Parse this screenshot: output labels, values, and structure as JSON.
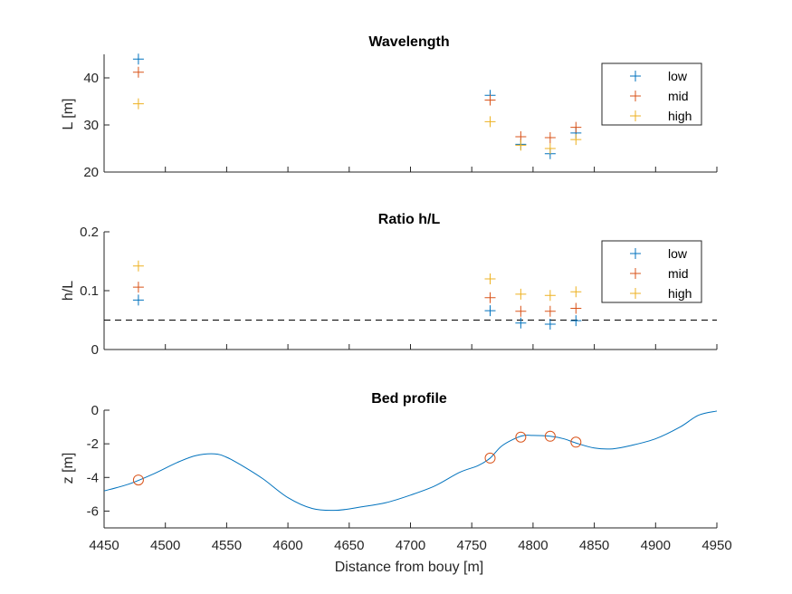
{
  "chart_data": [
    {
      "type": "scatter",
      "title": "Wavelength",
      "ylabel": "L [m]",
      "xlim": [
        4450,
        4950
      ],
      "ylim": [
        20,
        45
      ],
      "yticks": [
        20,
        30,
        40
      ],
      "legend": "top-right",
      "x": [
        4478,
        4765,
        4790,
        4814,
        4835
      ],
      "series": [
        {
          "name": "low",
          "color": "#0072BD",
          "values": [
            44.0,
            36.3,
            25.9,
            23.9,
            28.3
          ]
        },
        {
          "name": "mid",
          "color": "#D95319",
          "values": [
            41.2,
            35.3,
            27.5,
            27.3,
            29.5
          ]
        },
        {
          "name": "high",
          "color": "#EDB120",
          "values": [
            34.5,
            30.7,
            25.7,
            25.0,
            26.9
          ]
        }
      ]
    },
    {
      "type": "scatter",
      "title": "Ratio h/L",
      "ylabel": "h/L",
      "xlim": [
        4450,
        4950
      ],
      "ylim": [
        0,
        0.2
      ],
      "yticks": [
        0,
        0.1,
        0.2
      ],
      "ytick_labels": [
        "0",
        "0.1",
        "0.2"
      ],
      "legend": "top-right",
      "threshold": 0.05,
      "x": [
        4478,
        4765,
        4790,
        4814,
        4835
      ],
      "series": [
        {
          "name": "low",
          "color": "#0072BD",
          "values": [
            0.084,
            0.066,
            0.045,
            0.043,
            0.049
          ]
        },
        {
          "name": "mid",
          "color": "#D95319",
          "values": [
            0.106,
            0.088,
            0.065,
            0.065,
            0.07
          ]
        },
        {
          "name": "high",
          "color": "#EDB120",
          "values": [
            0.142,
            0.12,
            0.094,
            0.092,
            0.098
          ]
        }
      ]
    },
    {
      "type": "line",
      "title": "Bed profile",
      "ylabel": "z [m]",
      "xlabel": "Distance from bouy [m]",
      "xlim": [
        4450,
        4950
      ],
      "ylim": [
        -7,
        0
      ],
      "yticks": [
        -6,
        -4,
        -2,
        0
      ],
      "xticks": [
        4450,
        4500,
        4550,
        4600,
        4650,
        4700,
        4750,
        4800,
        4850,
        4900,
        4950
      ],
      "profile": {
        "color": "#0072BD",
        "x": [
          4450,
          4470,
          4490,
          4510,
          4525,
          4540,
          4550,
          4565,
          4580,
          4600,
          4620,
          4640,
          4660,
          4680,
          4700,
          4720,
          4740,
          4755,
          4765,
          4775,
          4790,
          4800,
          4814,
          4825,
          4835,
          4850,
          4865,
          4880,
          4900,
          4920,
          4935,
          4950
        ],
        "z": [
          -4.8,
          -4.4,
          -3.8,
          -3.1,
          -2.7,
          -2.6,
          -2.8,
          -3.4,
          -4.1,
          -5.2,
          -5.85,
          -5.95,
          -5.75,
          -5.5,
          -5.05,
          -4.5,
          -3.7,
          -3.3,
          -2.85,
          -2.1,
          -1.55,
          -1.5,
          -1.55,
          -1.7,
          -1.95,
          -2.25,
          -2.3,
          -2.1,
          -1.7,
          -1.0,
          -0.3,
          -0.05
        ]
      },
      "markers": {
        "color": "#D95319",
        "x": [
          4478,
          4765,
          4790,
          4814,
          4835
        ],
        "z": [
          -4.15,
          -2.85,
          -1.6,
          -1.55,
          -1.9
        ]
      }
    }
  ]
}
